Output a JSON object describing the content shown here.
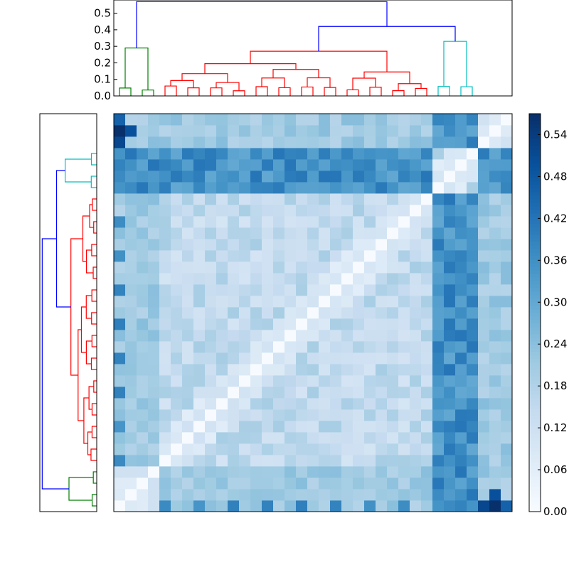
{
  "chart_data": {
    "type": "heatmap",
    "title": "",
    "xlabel": "",
    "ylabel": "",
    "n": 35,
    "leaf_groups": [
      {
        "name": "green",
        "color": "#008000",
        "size": 4
      },
      {
        "name": "red",
        "color": "#ff0000",
        "size": 24
      },
      {
        "name": "cyan",
        "color": "#00bfbf",
        "size": 4
      }
    ],
    "link_color_above_threshold": "#0000ff",
    "top_dendrogram": {
      "ylim": [
        0,
        0.58
      ],
      "yticks": [
        "0.0",
        "0.1",
        "0.2",
        "0.3",
        "0.4",
        "0.5"
      ],
      "root_height": 0.57,
      "cyan_red_merge_height": 0.42,
      "green_height": 0.29,
      "red_height": 0.27,
      "cyan_height": 0.33
    },
    "left_dendrogram": {
      "root_height": 0.57,
      "cyan_red_merge_height": 0.42
    },
    "colorbar": {
      "colormap": "Blues",
      "vmin": 0.0,
      "vmax": 0.57,
      "ticks": [
        "0.00",
        "0.06",
        "0.12",
        "0.18",
        "0.24",
        "0.30",
        "0.36",
        "0.42",
        "0.48",
        "0.54"
      ]
    },
    "matrix_description": "35x35 symmetric pairwise distance matrix reordered by leaf order; diagonal is 0.0; within-cluster values 0.06-0.22; red-cyan and green-cyan blocks 0.30-0.57"
  },
  "colors": {
    "frame": "#000000",
    "background": "#ffffff"
  }
}
